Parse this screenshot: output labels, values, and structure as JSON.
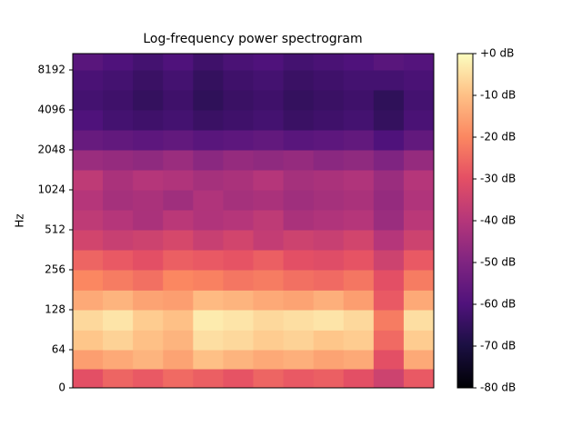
{
  "chart_data": {
    "type": "heatmap",
    "title": "Log-frequency power spectrogram",
    "y_label": "Hz",
    "y_scale": "log2-from-64",
    "ylim": [
      0,
      11025
    ],
    "yticks": [
      0,
      64,
      128,
      256,
      512,
      1024,
      2048,
      4096,
      8192
    ],
    "y_bins": [
      0,
      32,
      64,
      90,
      128,
      180,
      256,
      362,
      512,
      724,
      1024,
      1448,
      2048,
      2896,
      4096,
      5793,
      8192,
      11025
    ],
    "colormap": "magma",
    "clim": [
      -80,
      0
    ],
    "cticks": [
      {
        "value": 0,
        "label": "+0 dB"
      },
      {
        "value": -10,
        "label": "-10 dB"
      },
      {
        "value": -20,
        "label": "-20 dB"
      },
      {
        "value": -30,
        "label": "-30 dB"
      },
      {
        "value": -40,
        "label": "-40 dB"
      },
      {
        "value": -50,
        "label": "-50 dB"
      },
      {
        "value": -60,
        "label": "-60 dB"
      },
      {
        "value": -70,
        "label": "-70 dB"
      },
      {
        "value": -80,
        "label": "-80 dB"
      }
    ],
    "values": [
      [
        -30,
        -26,
        -28,
        -25,
        -27,
        -29,
        -26,
        -28,
        -27,
        -30,
        -35,
        -28
      ],
      [
        -16,
        -14,
        -12,
        -15,
        -10,
        -12,
        -14,
        -13,
        -15,
        -14,
        -30,
        -14
      ],
      [
        -9,
        -7,
        -10,
        -12,
        -5,
        -6,
        -8,
        -7,
        -9,
        -8,
        -25,
        -8
      ],
      [
        -6,
        -4,
        -8,
        -10,
        -3,
        -4,
        -6,
        -5,
        -4,
        -6,
        -22,
        -5
      ],
      [
        -14,
        -12,
        -15,
        -16,
        -11,
        -12,
        -14,
        -15,
        -13,
        -16,
        -28,
        -14
      ],
      [
        -20,
        -22,
        -24,
        -20,
        -21,
        -23,
        -22,
        -24,
        -25,
        -23,
        -30,
        -22
      ],
      [
        -26,
        -28,
        -30,
        -27,
        -28,
        -29,
        -27,
        -30,
        -31,
        -29,
        -35,
        -28
      ],
      [
        -34,
        -36,
        -35,
        -33,
        -36,
        -34,
        -37,
        -35,
        -36,
        -34,
        -40,
        -35
      ],
      [
        -38,
        -40,
        -42,
        -39,
        -41,
        -40,
        -38,
        -42,
        -41,
        -40,
        -45,
        -39
      ],
      [
        -40,
        -43,
        -42,
        -44,
        -41,
        -43,
        -42,
        -44,
        -43,
        -42,
        -46,
        -41
      ],
      [
        -38,
        -42,
        -40,
        -41,
        -43,
        -42,
        -40,
        -43,
        -42,
        -41,
        -45,
        -40
      ],
      [
        -45,
        -46,
        -47,
        -45,
        -48,
        -46,
        -47,
        -46,
        -48,
        -47,
        -50,
        -46
      ],
      [
        -55,
        -56,
        -57,
        -56,
        -58,
        -57,
        -56,
        -58,
        -57,
        -56,
        -60,
        -56
      ],
      [
        -60,
        -62,
        -63,
        -62,
        -64,
        -63,
        -62,
        -64,
        -63,
        -62,
        -65,
        -61
      ],
      [
        -62,
        -63,
        -65,
        -63,
        -66,
        -64,
        -63,
        -65,
        -64,
        -63,
        -66,
        -62
      ],
      [
        -61,
        -62,
        -64,
        -62,
        -65,
        -63,
        -62,
        -64,
        -63,
        -62,
        -62,
        -61
      ],
      [
        -58,
        -60,
        -62,
        -60,
        -63,
        -61,
        -60,
        -62,
        -61,
        -60,
        -58,
        -59
      ]
    ]
  }
}
